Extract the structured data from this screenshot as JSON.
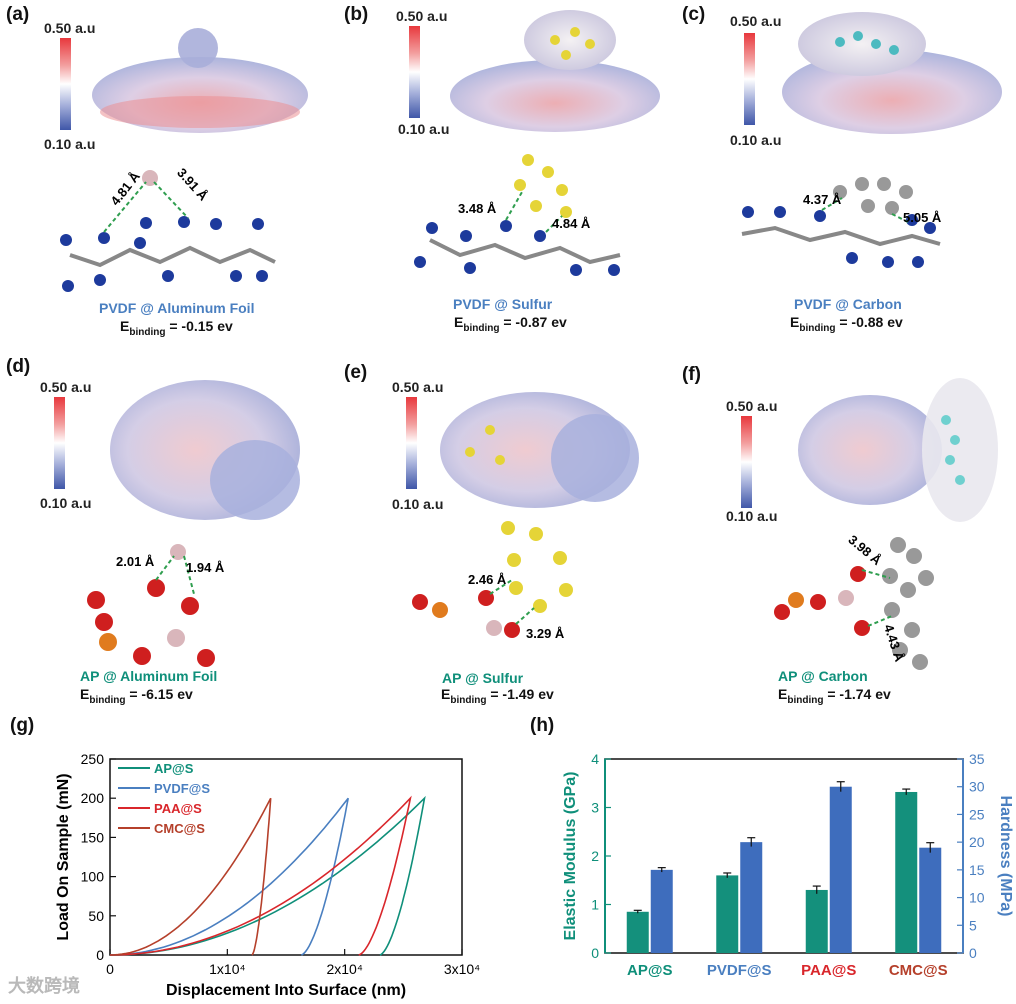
{
  "panels": {
    "a": {
      "label": "(a)",
      "cb_top": "0.50 a.u",
      "cb_bottom": "0.10 a.u",
      "distances": [
        "4.81 Å",
        "3.91 Å"
      ],
      "name": "PVDF @ Aluminum Foil",
      "e_prefix": "E",
      "e_sub": "binding",
      "e_value": " = -0.15 ev"
    },
    "b": {
      "label": "(b)",
      "cb_top": "0.50 a.u",
      "cb_bottom": "0.10 a.u",
      "distances": [
        "3.48 Å",
        "4.84 Å"
      ],
      "name": "PVDF @ Sulfur",
      "e_prefix": "E",
      "e_sub": "binding",
      "e_value": " = -0.87 ev"
    },
    "c": {
      "label": "(c)",
      "cb_top": "0.50 a.u",
      "cb_bottom": "0.10 a.u",
      "distances": [
        "4.37 Å",
        "5.05 Å"
      ],
      "name": "PVDF @ Carbon",
      "e_prefix": "E",
      "e_sub": "binding",
      "e_value": " = -0.88 ev"
    },
    "d": {
      "label": "(d)",
      "cb_top": "0.50 a.u",
      "cb_bottom": "0.10 a.u",
      "distances": [
        "2.01 Å",
        "1.94 Å"
      ],
      "name": "AP @ Aluminum Foil",
      "e_prefix": "E",
      "e_sub": "binding",
      "e_value": " = -6.15 ev"
    },
    "e": {
      "label": "(e)",
      "cb_top": "0.50 a.u",
      "cb_bottom": "0.10 a.u",
      "distances": [
        "2.46 Å",
        "3.29 Å"
      ],
      "name": "AP @ Sulfur",
      "e_prefix": "E",
      "e_sub": "binding",
      "e_value": " = -1.49 ev"
    },
    "f": {
      "label": "(f)",
      "cb_top": "0.50 a.u",
      "cb_bottom": "0.10 a.u",
      "distances": [
        "3.98 Å",
        "4.43 Å"
      ],
      "name": "AP @ Carbon",
      "e_prefix": "E",
      "e_sub": "binding",
      "e_value": " = -1.74 ev"
    },
    "g": {
      "label": "(g)"
    },
    "h": {
      "label": "(h)"
    }
  },
  "watermark": "大数跨境",
  "colors": {
    "teal": "#0f8f7a",
    "blue": "#4a7fc0",
    "red": "#d9262b",
    "brown": "#b5402b",
    "cap_blue": "#4a7fc0",
    "cap_teal": "#0f8f7a"
  },
  "chart_data": [
    {
      "type": "line",
      "panel": "g",
      "xlabel": "Displacement Into Surface (nm)",
      "ylabel": "Load On Sample (mN)",
      "xlim": [
        0,
        30000
      ],
      "ylim": [
        0,
        250
      ],
      "xticks": [
        "0",
        "1x10⁴",
        "2x10⁴",
        "3x10⁴"
      ],
      "yticks": [
        "0",
        "50",
        "100",
        "150",
        "200",
        "250"
      ],
      "legend_position": "top-left",
      "series": [
        {
          "name": "AP@S",
          "color": "#0f8f7a",
          "max_load": 200,
          "max_disp": 26800,
          "unload_end": 23000
        },
        {
          "name": "PVDF@S",
          "color": "#4a7fc0",
          "max_load": 200,
          "max_disp": 20300,
          "unload_end": 16300
        },
        {
          "name": "PAA@S",
          "color": "#d9262b",
          "max_load": 200,
          "max_disp": 25600,
          "unload_end": 21200
        },
        {
          "name": "CMC@S",
          "color": "#b5402b",
          "max_load": 200,
          "max_disp": 13700,
          "unload_end": 12100
        }
      ]
    },
    {
      "type": "bar",
      "panel": "h",
      "categories": [
        "AP@S",
        "PVDF@S",
        "PAA@S",
        "CMC@S"
      ],
      "category_colors": [
        "#0f8f7a",
        "#4a7fc0",
        "#d9262b",
        "#b5402b"
      ],
      "ylabel": "Elastic Modulus (GPa)",
      "y2label": "Hardness (MPa)",
      "ylim": [
        0,
        4
      ],
      "y2lim": [
        0,
        35
      ],
      "yticks": [
        "0",
        "1",
        "2",
        "3",
        "4"
      ],
      "y2ticks": [
        "0",
        "5",
        "10",
        "15",
        "20",
        "25",
        "30",
        "35"
      ],
      "series": [
        {
          "name": "Elastic Modulus",
          "axis": "left",
          "color": "#14907c",
          "values": [
            0.85,
            1.6,
            1.3,
            3.32
          ],
          "errors": [
            0.03,
            0.05,
            0.08,
            0.06
          ]
        },
        {
          "name": "Hardness",
          "axis": "right",
          "color": "#3e6dbd",
          "values": [
            15,
            20,
            30,
            19
          ],
          "errors": [
            0.4,
            0.8,
            0.9,
            0.9
          ]
        }
      ]
    }
  ]
}
